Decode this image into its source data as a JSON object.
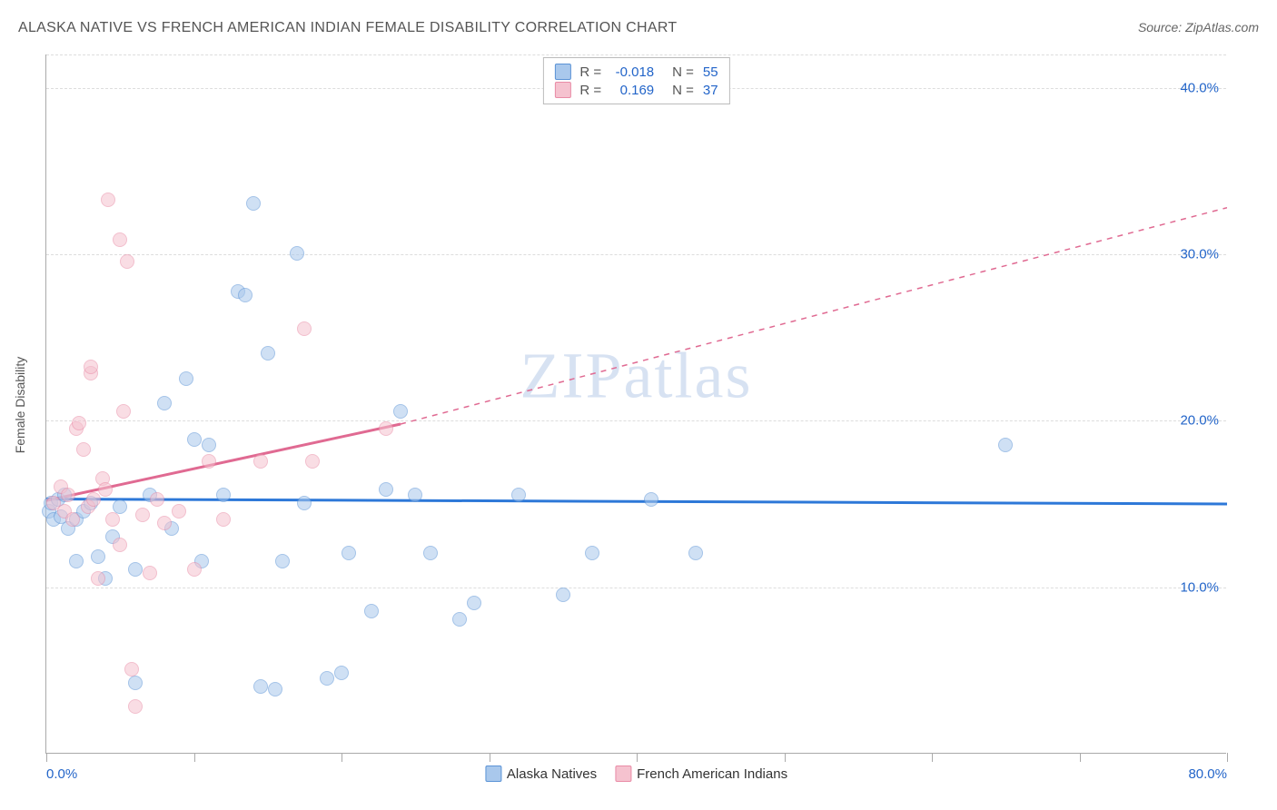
{
  "title": "ALASKA NATIVE VS FRENCH AMERICAN INDIAN FEMALE DISABILITY CORRELATION CHART",
  "source": "Source: ZipAtlas.com",
  "y_axis_label": "Female Disability",
  "watermark": "ZIPatlas",
  "chart": {
    "type": "scatter",
    "xlim": [
      0,
      80
    ],
    "ylim": [
      0,
      42
    ],
    "x_ticks": [
      0,
      10,
      20,
      30,
      40,
      50,
      60,
      70,
      80
    ],
    "x_tick_labels": {
      "0": "0.0%",
      "80": "80.0%"
    },
    "y_gridlines": [
      10,
      20,
      30,
      40,
      42
    ],
    "y_tick_labels": {
      "10": "10.0%",
      "20": "20.0%",
      "30": "30.0%",
      "40": "40.0%"
    },
    "background_color": "#ffffff",
    "grid_color": "#dddddd",
    "axis_color": "#aaaaaa",
    "tick_label_color": "#2365c9",
    "point_radius": 8,
    "point_opacity": 0.55
  },
  "series": [
    {
      "name": "Alaska Natives",
      "fill_color": "#a9c8ec",
      "stroke_color": "#5b93d6",
      "r_label": "R =",
      "r_value": "-0.018",
      "n_label": "N =",
      "n_value": "55",
      "trend": {
        "x1": 0,
        "y1": 15.3,
        "x2": 80,
        "y2": 15.0,
        "color": "#2d78d8",
        "width": 3,
        "dash": "none"
      },
      "points": [
        [
          0.2,
          14.5
        ],
        [
          0.3,
          15.0
        ],
        [
          0.5,
          14.0
        ],
        [
          0.8,
          15.2
        ],
        [
          1.0,
          14.2
        ],
        [
          1.2,
          15.5
        ],
        [
          1.5,
          13.5
        ],
        [
          2.0,
          14.0
        ],
        [
          2.0,
          11.5
        ],
        [
          2.5,
          14.5
        ],
        [
          3.0,
          15.0
        ],
        [
          3.5,
          11.8
        ],
        [
          4.0,
          10.5
        ],
        [
          4.5,
          13.0
        ],
        [
          5.0,
          14.8
        ],
        [
          6.0,
          4.2
        ],
        [
          6.0,
          11.0
        ],
        [
          7.0,
          15.5
        ],
        [
          8.0,
          21.0
        ],
        [
          8.5,
          13.5
        ],
        [
          9.5,
          22.5
        ],
        [
          10.0,
          18.8
        ],
        [
          10.5,
          11.5
        ],
        [
          11.0,
          18.5
        ],
        [
          12.0,
          15.5
        ],
        [
          13.0,
          27.7
        ],
        [
          13.5,
          27.5
        ],
        [
          14.0,
          33.0
        ],
        [
          14.5,
          4.0
        ],
        [
          15.0,
          24.0
        ],
        [
          15.5,
          3.8
        ],
        [
          16.0,
          11.5
        ],
        [
          17.0,
          30.0
        ],
        [
          17.5,
          15.0
        ],
        [
          19.0,
          4.5
        ],
        [
          20.0,
          4.8
        ],
        [
          20.5,
          12.0
        ],
        [
          22.0,
          8.5
        ],
        [
          23.0,
          15.8
        ],
        [
          24.0,
          20.5
        ],
        [
          25.0,
          15.5
        ],
        [
          26.0,
          12.0
        ],
        [
          28.0,
          8.0
        ],
        [
          29.0,
          9.0
        ],
        [
          32.0,
          15.5
        ],
        [
          35.0,
          9.5
        ],
        [
          37.0,
          12.0
        ],
        [
          41.0,
          15.2
        ],
        [
          44.0,
          12.0
        ],
        [
          65.0,
          18.5
        ]
      ]
    },
    {
      "name": "French American Indians",
      "fill_color": "#f5c2cf",
      "stroke_color": "#e98ba6",
      "r_label": "R =",
      "r_value": "0.169",
      "n_label": "N =",
      "n_value": "37",
      "trend": {
        "x1": 0,
        "y1": 15.2,
        "x2_solid": 24,
        "y2_solid": 19.8,
        "x2": 80,
        "y2": 32.8,
        "color": "#e06a92",
        "width": 3,
        "dash": "dashed_after_solid"
      },
      "points": [
        [
          0.5,
          15.0
        ],
        [
          1.0,
          16.0
        ],
        [
          1.2,
          14.5
        ],
        [
          1.5,
          15.5
        ],
        [
          1.8,
          14.0
        ],
        [
          2.0,
          19.5
        ],
        [
          2.2,
          19.8
        ],
        [
          2.5,
          18.2
        ],
        [
          2.8,
          14.8
        ],
        [
          3.0,
          22.8
        ],
        [
          3.0,
          23.2
        ],
        [
          3.2,
          15.2
        ],
        [
          3.5,
          10.5
        ],
        [
          3.8,
          16.5
        ],
        [
          4.0,
          15.8
        ],
        [
          4.2,
          33.2
        ],
        [
          4.5,
          14.0
        ],
        [
          5.0,
          12.5
        ],
        [
          5.0,
          30.8
        ],
        [
          5.2,
          20.5
        ],
        [
          5.5,
          29.5
        ],
        [
          5.8,
          5.0
        ],
        [
          6.0,
          2.8
        ],
        [
          6.5,
          14.3
        ],
        [
          7.0,
          10.8
        ],
        [
          7.5,
          15.2
        ],
        [
          8.0,
          13.8
        ],
        [
          9.0,
          14.5
        ],
        [
          10.0,
          11.0
        ],
        [
          11.0,
          17.5
        ],
        [
          12.0,
          14.0
        ],
        [
          14.5,
          17.5
        ],
        [
          17.5,
          25.5
        ],
        [
          18.0,
          17.5
        ],
        [
          23.0,
          19.5
        ]
      ]
    }
  ],
  "legend_bottom": [
    {
      "label": "Alaska Natives",
      "fill": "#a9c8ec",
      "stroke": "#5b93d6"
    },
    {
      "label": "French American Indians",
      "fill": "#f5c2cf",
      "stroke": "#e98ba6"
    }
  ]
}
